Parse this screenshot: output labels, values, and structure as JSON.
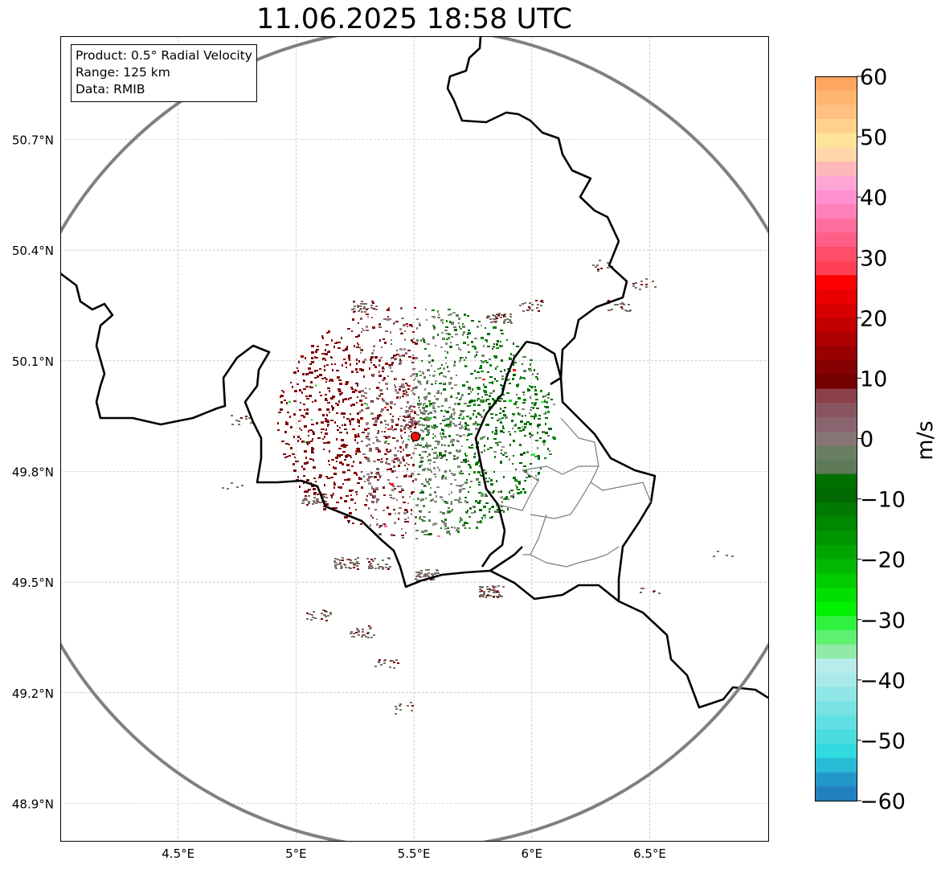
{
  "title": "11.06.2025 18:58 UTC",
  "info": {
    "product": "Product: 0.5° Radial Velocity",
    "range": "Range: 125 km",
    "data": "Data: RMIB"
  },
  "colorbar": {
    "label": "m/s",
    "ticks": [
      "60",
      "50",
      "40",
      "30",
      "20",
      "10",
      "0",
      "−10",
      "−20",
      "−30",
      "−40",
      "−50",
      "−60"
    ],
    "vmin": -60,
    "vmax": 60,
    "colors_top_to_bottom": [
      "#ffa560",
      "#ffb470",
      "#ffc080",
      "#ffd18a",
      "#ffe39a",
      "#ffd6a8",
      "#ffb8b8",
      "#ffa6d6",
      "#ff8fd0",
      "#ff7fba",
      "#ff6f9e",
      "#ff5e86",
      "#ff4d6a",
      "#ff4055",
      "#ff0000",
      "#ea0000",
      "#d60000",
      "#c20000",
      "#ad0000",
      "#990000",
      "#850000",
      "#740000",
      "#8a4048",
      "#8a5560",
      "#8a6570",
      "#877575",
      "#6a7e62",
      "#5e7a58",
      "#007000",
      "#006800",
      "#007a00",
      "#008800",
      "#009600",
      "#00a500",
      "#00b800",
      "#00cc00",
      "#00e000",
      "#00f000",
      "#30f040",
      "#60f070",
      "#90eba8",
      "#b8ecec",
      "#a8eaea",
      "#90e6e6",
      "#78e2e4",
      "#60dfe2",
      "#48dcdf",
      "#30dade",
      "#28bcd6",
      "#2497ca",
      "#2080c0"
    ]
  },
  "chart_data": {
    "type": "heatmap",
    "title": "11.06.2025 18:58 UTC",
    "xlabel": "",
    "ylabel": "",
    "x_ticks": [
      "4.5°E",
      "5°E",
      "5.5°E",
      "6°E",
      "6.5°E"
    ],
    "x_tick_values": [
      4.5,
      5.0,
      5.5,
      6.0,
      6.5
    ],
    "y_ticks": [
      "50.7°N",
      "50.4°N",
      "50.1°N",
      "49.8°N",
      "49.5°N",
      "49.2°N",
      "48.9°N"
    ],
    "y_tick_values": [
      50.7,
      50.4,
      50.1,
      49.8,
      49.5,
      49.2,
      48.9
    ],
    "xlim": [
      4.0,
      7.0
    ],
    "ylim": [
      48.8,
      50.98
    ],
    "grid": true,
    "radar_site": {
      "lon": 5.505,
      "lat": 49.914
    },
    "range_km": 125,
    "colorbar_unit": "m/s",
    "velocity_range": [
      -60,
      60
    ],
    "regions": [
      {
        "name": "receding",
        "lon": [
          4.9,
          5.4
        ],
        "lat": [
          49.75,
          50.1
        ],
        "velocity": 12
      },
      {
        "name": "near-zero-receding",
        "lon": [
          5.3,
          5.55
        ],
        "lat": [
          49.7,
          50.15
        ],
        "velocity": 3
      },
      {
        "name": "near-zero-approaching",
        "lon": [
          5.55,
          5.8
        ],
        "lat": [
          49.7,
          50.15
        ],
        "velocity": -3
      },
      {
        "name": "approaching",
        "lon": [
          5.7,
          5.95
        ],
        "lat": [
          49.75,
          50.05
        ],
        "velocity": -10
      }
    ]
  }
}
